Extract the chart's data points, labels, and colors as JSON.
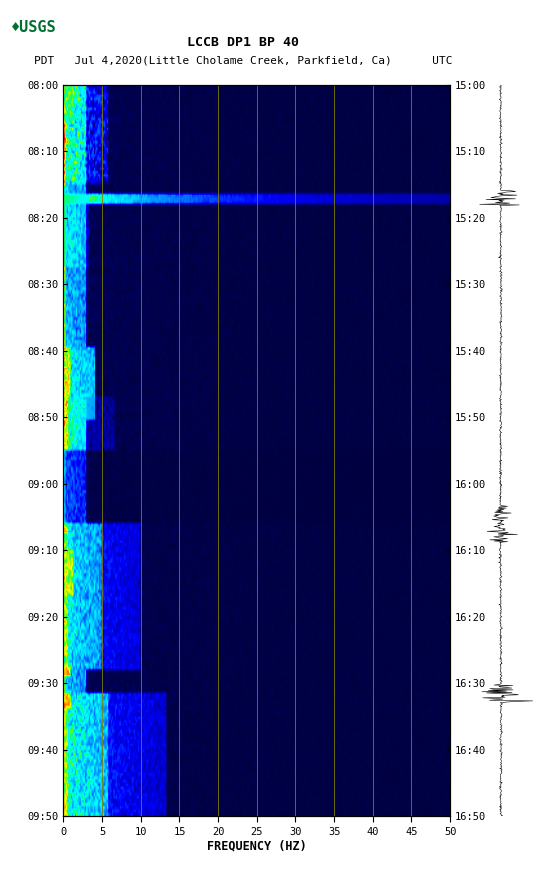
{
  "title_line1": "LCCB DP1 BP 40",
  "title_line2": "PDT   Jul 4,2020(Little Cholame Creek, Parkfield, Ca)      UTC",
  "xlabel": "FREQUENCY (HZ)",
  "freq_min": 0,
  "freq_max": 50,
  "freq_ticks": [
    0,
    5,
    10,
    15,
    20,
    25,
    30,
    35,
    40,
    45,
    50
  ],
  "time_labels_left": [
    "08:00",
    "08:10",
    "08:20",
    "08:30",
    "08:40",
    "08:50",
    "09:00",
    "09:10",
    "09:20",
    "09:30",
    "09:40",
    "09:50"
  ],
  "time_labels_right": [
    "15:00",
    "15:10",
    "15:20",
    "15:30",
    "15:40",
    "15:50",
    "16:00",
    "16:10",
    "16:20",
    "16:30",
    "16:40",
    "16:50"
  ],
  "background_color": "#ffffff",
  "usgs_green": "#007030",
  "vline_color": "#808000",
  "seis_color": "#000000",
  "spec_base_color": "#00008B"
}
